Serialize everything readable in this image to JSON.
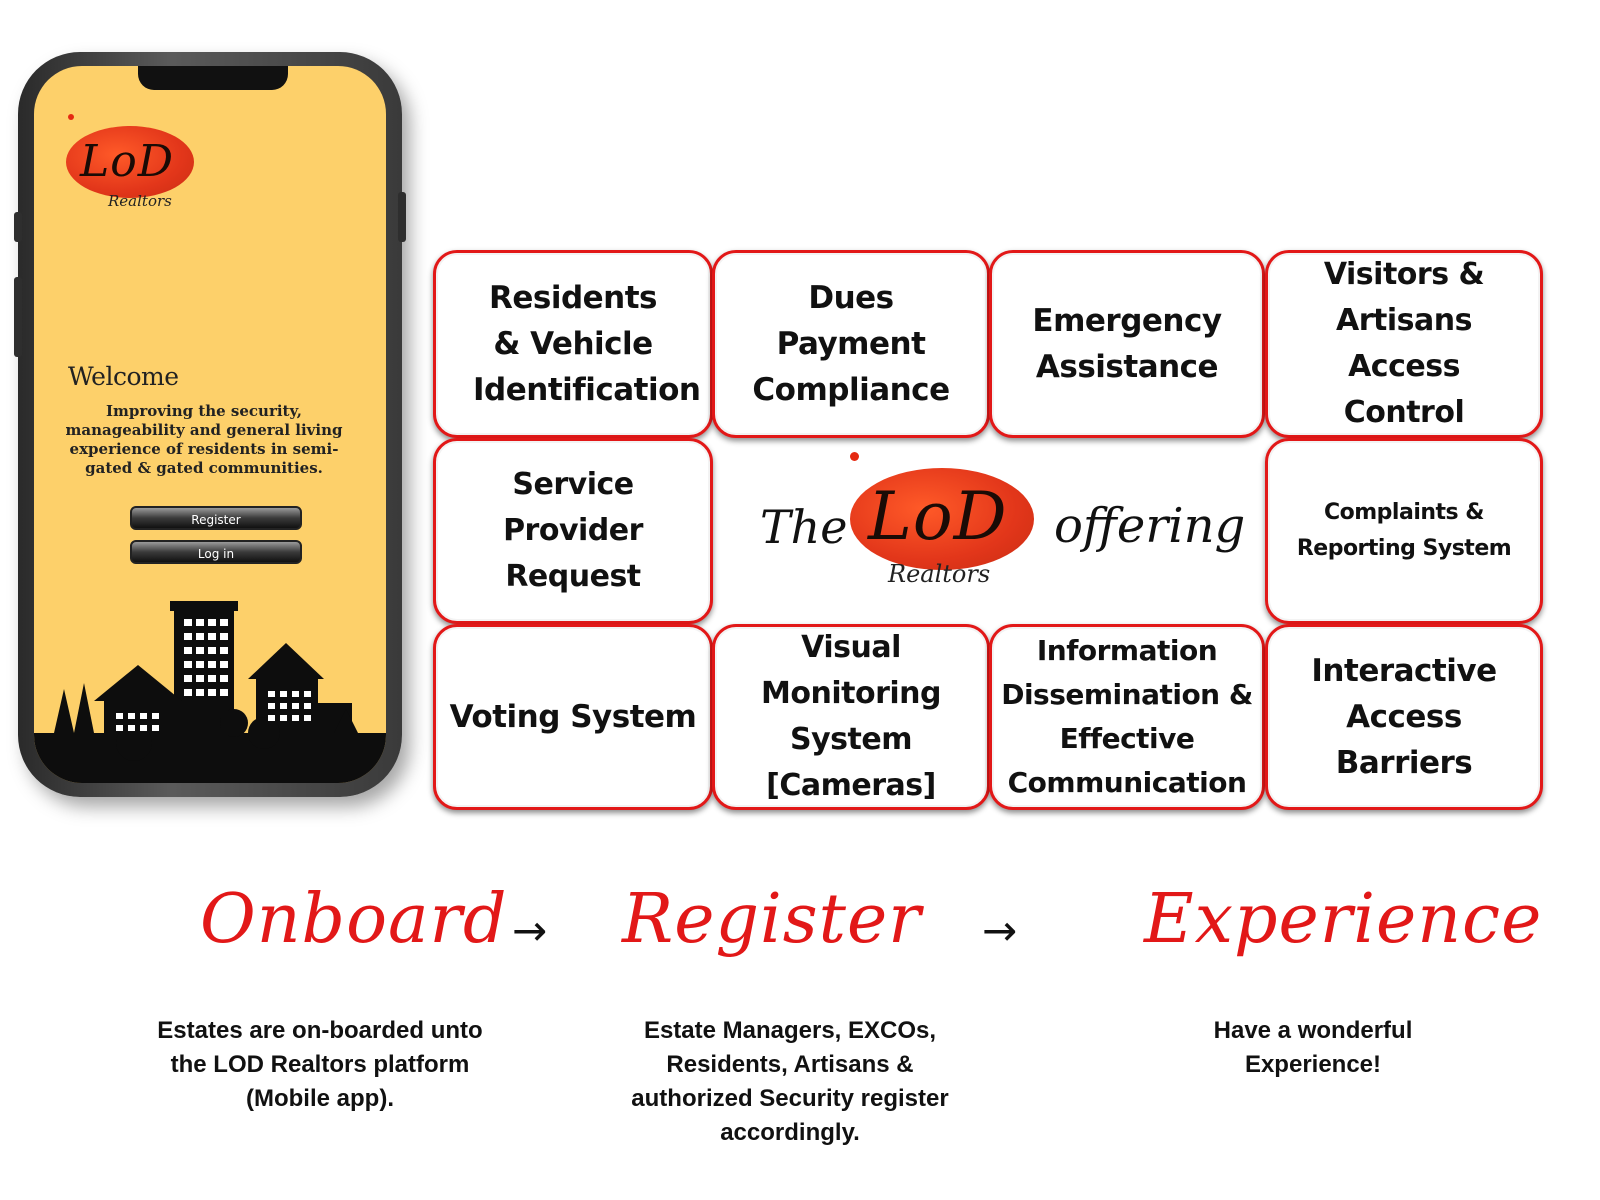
{
  "phone": {
    "logo_text": "LoD",
    "logo_sub": "Realtors",
    "welcome": "Welcome",
    "tagline": "Improving the security, manageability and general living experience of residents in semi-gated & gated communities.",
    "register_label": "Register",
    "login_label": "Log in"
  },
  "offerings": {
    "cells": [
      "Residents & Vehicle Identification",
      "Dues Payment Compliance",
      "Emergency Assistance",
      "Visitors & Artisans Access Control",
      "Service Provider Request",
      "Complaints & Reporting System",
      "Voting System",
      "Visual Monitoring System [Cameras]",
      "Information Dissemination & Effective Communication",
      "Interactive Access Barriers"
    ],
    "title_prefix": "The",
    "title_suffix": "offering",
    "logo_text": "LoD",
    "logo_sub": "Realtors"
  },
  "steps": [
    {
      "word": "Onboard",
      "desc": "Estates are on-boarded unto the LOD Realtors platform (Mobile app)."
    },
    {
      "word": "Register",
      "desc": "Estate Managers, EXCOs, Residents, Artisans & authorized Security register accordingly."
    },
    {
      "word": "Experience",
      "desc": "Have a wonderful Experience!"
    }
  ],
  "arrow_glyph": "→",
  "colors": {
    "accent_red": "#e21818",
    "screen_yellow": "#fdd06a",
    "logo_orange": "#e2361a"
  }
}
